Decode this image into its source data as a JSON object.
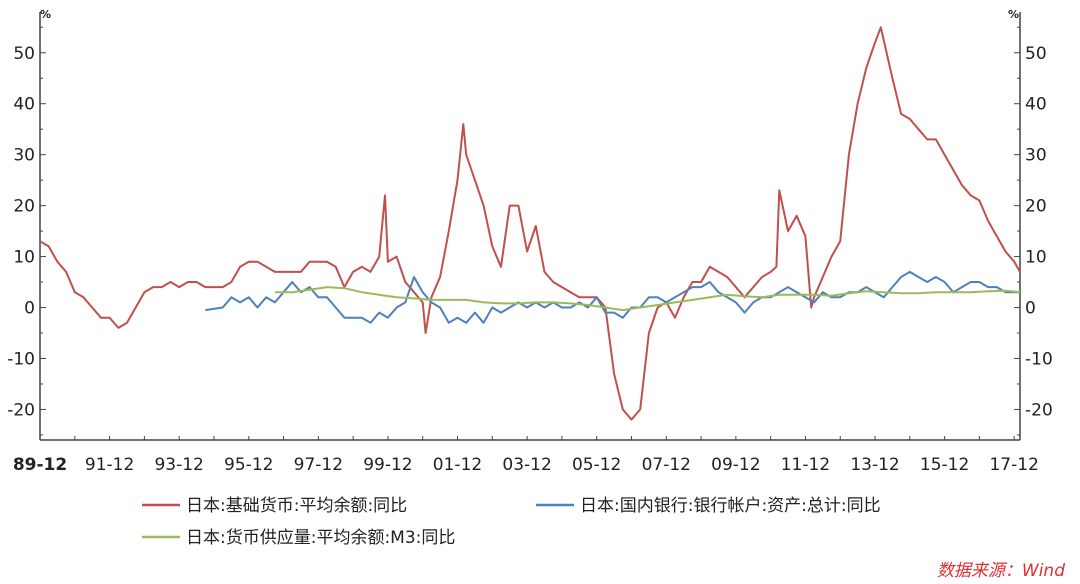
{
  "chart_data": {
    "type": "line",
    "y_unit_left": "%",
    "y_unit_right": "%",
    "ylim": [
      -26,
      58
    ],
    "yticks": [
      -20,
      -10,
      0,
      10,
      20,
      30,
      40,
      50
    ],
    "xlim": [
      "1989-12",
      "2018-02"
    ],
    "xtick_labels": [
      "89-12",
      "91-12",
      "93-12",
      "95-12",
      "97-12",
      "99-12",
      "01-12",
      "03-12",
      "05-12",
      "07-12",
      "09-12",
      "11-12",
      "13-12",
      "15-12",
      "17-12"
    ],
    "grid": false,
    "legend_position": "bottom",
    "source": "数据来源：Wind",
    "series": [
      {
        "name": "日本:基础货币:平均余额:同比",
        "color": "#c0504d",
        "points": [
          [
            "1989-12",
            13
          ],
          [
            "1990-03",
            12
          ],
          [
            "1990-06",
            9
          ],
          [
            "1990-09",
            7
          ],
          [
            "1990-12",
            3
          ],
          [
            "1991-03",
            2
          ],
          [
            "1991-06",
            0
          ],
          [
            "1991-09",
            -2
          ],
          [
            "1991-12",
            -2
          ],
          [
            "1992-03",
            -4
          ],
          [
            "1992-06",
            -3
          ],
          [
            "1992-09",
            0
          ],
          [
            "1992-12",
            3
          ],
          [
            "1993-03",
            4
          ],
          [
            "1993-06",
            4
          ],
          [
            "1993-09",
            5
          ],
          [
            "1993-12",
            4
          ],
          [
            "1994-03",
            5
          ],
          [
            "1994-06",
            5
          ],
          [
            "1994-09",
            4
          ],
          [
            "1994-12",
            4
          ],
          [
            "1995-03",
            4
          ],
          [
            "1995-06",
            5
          ],
          [
            "1995-09",
            8
          ],
          [
            "1995-12",
            9
          ],
          [
            "1996-03",
            9
          ],
          [
            "1996-06",
            8
          ],
          [
            "1996-09",
            7
          ],
          [
            "1996-12",
            7
          ],
          [
            "1997-03",
            7
          ],
          [
            "1997-06",
            7
          ],
          [
            "1997-09",
            9
          ],
          [
            "1997-12",
            9
          ],
          [
            "1998-03",
            9
          ],
          [
            "1998-06",
            8
          ],
          [
            "1998-09",
            4
          ],
          [
            "1998-12",
            7
          ],
          [
            "1999-03",
            8
          ],
          [
            "1999-06",
            7
          ],
          [
            "1999-09",
            10
          ],
          [
            "1999-11",
            22
          ],
          [
            "1999-12",
            9
          ],
          [
            "2000-03",
            10
          ],
          [
            "2000-06",
            5
          ],
          [
            "2000-09",
            3
          ],
          [
            "2000-12",
            1
          ],
          [
            "2001-01",
            -5
          ],
          [
            "2001-03",
            2
          ],
          [
            "2001-06",
            6
          ],
          [
            "2001-09",
            15
          ],
          [
            "2001-12",
            25
          ],
          [
            "2002-02",
            36
          ],
          [
            "2002-03",
            30
          ],
          [
            "2002-06",
            25
          ],
          [
            "2002-09",
            20
          ],
          [
            "2002-12",
            12
          ],
          [
            "2003-03",
            8
          ],
          [
            "2003-06",
            20
          ],
          [
            "2003-09",
            20
          ],
          [
            "2003-12",
            11
          ],
          [
            "2004-03",
            16
          ],
          [
            "2004-06",
            7
          ],
          [
            "2004-09",
            5
          ],
          [
            "2004-12",
            4
          ],
          [
            "2005-03",
            3
          ],
          [
            "2005-06",
            2
          ],
          [
            "2005-09",
            2
          ],
          [
            "2005-12",
            2
          ],
          [
            "2006-03",
            0
          ],
          [
            "2006-06",
            -13
          ],
          [
            "2006-09",
            -20
          ],
          [
            "2006-12",
            -22
          ],
          [
            "2007-03",
            -20
          ],
          [
            "2007-06",
            -5
          ],
          [
            "2007-09",
            0
          ],
          [
            "2007-12",
            1
          ],
          [
            "2008-03",
            -2
          ],
          [
            "2008-06",
            2
          ],
          [
            "2008-09",
            5
          ],
          [
            "2008-12",
            5
          ],
          [
            "2009-03",
            8
          ],
          [
            "2009-06",
            7
          ],
          [
            "2009-09",
            6
          ],
          [
            "2009-12",
            4
          ],
          [
            "2010-03",
            2
          ],
          [
            "2010-06",
            4
          ],
          [
            "2010-09",
            6
          ],
          [
            "2010-12",
            7
          ],
          [
            "2011-02",
            8
          ],
          [
            "2011-03",
            23
          ],
          [
            "2011-06",
            15
          ],
          [
            "2011-09",
            18
          ],
          [
            "2011-12",
            14
          ],
          [
            "2012-02",
            0
          ],
          [
            "2012-03",
            2
          ],
          [
            "2012-06",
            6
          ],
          [
            "2012-09",
            10
          ],
          [
            "2012-12",
            13
          ],
          [
            "2013-03",
            30
          ],
          [
            "2013-06",
            40
          ],
          [
            "2013-09",
            47
          ],
          [
            "2013-12",
            52
          ],
          [
            "2014-02",
            55
          ],
          [
            "2014-06",
            45
          ],
          [
            "2014-09",
            38
          ],
          [
            "2014-12",
            37
          ],
          [
            "2015-03",
            35
          ],
          [
            "2015-06",
            33
          ],
          [
            "2015-09",
            33
          ],
          [
            "2015-12",
            30
          ],
          [
            "2016-03",
            27
          ],
          [
            "2016-06",
            24
          ],
          [
            "2016-09",
            22
          ],
          [
            "2016-12",
            21
          ],
          [
            "2017-03",
            17
          ],
          [
            "2017-06",
            14
          ],
          [
            "2017-09",
            11
          ],
          [
            "2017-12",
            9
          ],
          [
            "2018-02",
            7
          ]
        ]
      },
      {
        "name": "日本:国内银行:银行帐户:资产:总计:同比",
        "color": "#4f81bd",
        "points": [
          [
            "1994-09",
            -0.5
          ],
          [
            "1995-03",
            0
          ],
          [
            "1995-06",
            2
          ],
          [
            "1995-09",
            1
          ],
          [
            "1995-12",
            2
          ],
          [
            "1996-03",
            0
          ],
          [
            "1996-06",
            2
          ],
          [
            "1996-09",
            1
          ],
          [
            "1996-12",
            3
          ],
          [
            "1997-03",
            5
          ],
          [
            "1997-06",
            3
          ],
          [
            "1997-09",
            4
          ],
          [
            "1997-12",
            2
          ],
          [
            "1998-03",
            2
          ],
          [
            "1998-06",
            0
          ],
          [
            "1998-09",
            -2
          ],
          [
            "1998-12",
            -2
          ],
          [
            "1999-03",
            -2
          ],
          [
            "1999-06",
            -3
          ],
          [
            "1999-09",
            -1
          ],
          [
            "1999-12",
            -2
          ],
          [
            "2000-03",
            0
          ],
          [
            "2000-06",
            1
          ],
          [
            "2000-09",
            6
          ],
          [
            "2000-12",
            3
          ],
          [
            "2001-03",
            1
          ],
          [
            "2001-06",
            0
          ],
          [
            "2001-09",
            -3
          ],
          [
            "2001-12",
            -2
          ],
          [
            "2002-03",
            -3
          ],
          [
            "2002-06",
            -1
          ],
          [
            "2002-09",
            -3
          ],
          [
            "2002-12",
            0
          ],
          [
            "2003-03",
            -1
          ],
          [
            "2003-06",
            0
          ],
          [
            "2003-09",
            1
          ],
          [
            "2003-12",
            0
          ],
          [
            "2004-03",
            1
          ],
          [
            "2004-06",
            0
          ],
          [
            "2004-09",
            1
          ],
          [
            "2004-12",
            0
          ],
          [
            "2005-03",
            0
          ],
          [
            "2005-06",
            1
          ],
          [
            "2005-09",
            0
          ],
          [
            "2005-12",
            2
          ],
          [
            "2006-03",
            -1
          ],
          [
            "2006-06",
            -1
          ],
          [
            "2006-09",
            -2
          ],
          [
            "2006-12",
            0
          ],
          [
            "2007-03",
            0
          ],
          [
            "2007-06",
            2
          ],
          [
            "2007-09",
            2
          ],
          [
            "2007-12",
            1
          ],
          [
            "2008-03",
            2
          ],
          [
            "2008-06",
            3
          ],
          [
            "2008-09",
            4
          ],
          [
            "2008-12",
            4
          ],
          [
            "2009-03",
            5
          ],
          [
            "2009-06",
            3
          ],
          [
            "2009-09",
            2
          ],
          [
            "2009-12",
            1
          ],
          [
            "2010-03",
            -1
          ],
          [
            "2010-06",
            1
          ],
          [
            "2010-09",
            2
          ],
          [
            "2010-12",
            2
          ],
          [
            "2011-03",
            3
          ],
          [
            "2011-06",
            4
          ],
          [
            "2011-09",
            3
          ],
          [
            "2011-12",
            2
          ],
          [
            "2012-03",
            1
          ],
          [
            "2012-06",
            3
          ],
          [
            "2012-09",
            2
          ],
          [
            "2012-12",
            2
          ],
          [
            "2013-03",
            3
          ],
          [
            "2013-06",
            3
          ],
          [
            "2013-09",
            4
          ],
          [
            "2013-12",
            3
          ],
          [
            "2014-03",
            2
          ],
          [
            "2014-06",
            4
          ],
          [
            "2014-09",
            6
          ],
          [
            "2014-12",
            7
          ],
          [
            "2015-03",
            6
          ],
          [
            "2015-06",
            5
          ],
          [
            "2015-09",
            6
          ],
          [
            "2015-12",
            5
          ],
          [
            "2016-03",
            3
          ],
          [
            "2016-06",
            4
          ],
          [
            "2016-09",
            5
          ],
          [
            "2016-12",
            5
          ],
          [
            "2017-03",
            4
          ],
          [
            "2017-06",
            4
          ],
          [
            "2017-09",
            3
          ],
          [
            "2017-12",
            3
          ],
          [
            "2018-02",
            3
          ]
        ]
      },
      {
        "name": "日本:货币供应量:平均余额:M3:同比",
        "color": "#9bbb59",
        "points": [
          [
            "1996-09",
            3
          ],
          [
            "1997-03",
            3
          ],
          [
            "1997-09",
            3.5
          ],
          [
            "1998-03",
            4
          ],
          [
            "1998-09",
            3.8
          ],
          [
            "1999-03",
            3
          ],
          [
            "1999-09",
            2.5
          ],
          [
            "2000-03",
            2
          ],
          [
            "2000-09",
            1.8
          ],
          [
            "2001-03",
            1.5
          ],
          [
            "2001-09",
            1.5
          ],
          [
            "2002-03",
            1.5
          ],
          [
            "2002-09",
            1
          ],
          [
            "2003-03",
            0.8
          ],
          [
            "2003-09",
            0.8
          ],
          [
            "2004-03",
            1
          ],
          [
            "2004-09",
            1
          ],
          [
            "2005-03",
            0.8
          ],
          [
            "2005-09",
            0.5
          ],
          [
            "2006-03",
            0
          ],
          [
            "2006-09",
            -0.5
          ],
          [
            "2007-03",
            0
          ],
          [
            "2007-09",
            0.5
          ],
          [
            "2008-03",
            1
          ],
          [
            "2008-09",
            1.5
          ],
          [
            "2009-03",
            2
          ],
          [
            "2009-09",
            2.5
          ],
          [
            "2010-03",
            2.2
          ],
          [
            "2010-09",
            2
          ],
          [
            "2011-03",
            2.5
          ],
          [
            "2011-09",
            2.5
          ],
          [
            "2012-03",
            2.5
          ],
          [
            "2012-09",
            2.3
          ],
          [
            "2013-03",
            2.8
          ],
          [
            "2013-09",
            3.2
          ],
          [
            "2014-03",
            3
          ],
          [
            "2014-09",
            2.8
          ],
          [
            "2015-03",
            2.8
          ],
          [
            "2015-09",
            3
          ],
          [
            "2016-03",
            3
          ],
          [
            "2016-09",
            3
          ],
          [
            "2017-03",
            3.2
          ],
          [
            "2017-09",
            3.3
          ],
          [
            "2018-02",
            3
          ]
        ]
      }
    ]
  }
}
